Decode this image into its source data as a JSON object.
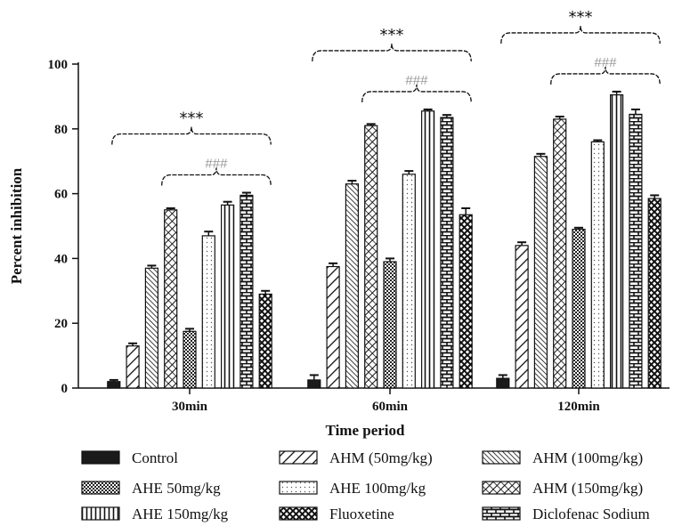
{
  "chart_data": {
    "type": "bar",
    "xlabel": "Time period",
    "ylabel": "Percent inhibition",
    "ylim": [
      0,
      100
    ],
    "yticks": [
      0,
      20,
      40,
      60,
      80,
      100
    ],
    "categories": [
      "30min",
      "60min",
      "120min"
    ],
    "series": [
      {
        "name": "Control",
        "pattern": "solid",
        "values": [
          2,
          2.5,
          3
        ],
        "errors": [
          0.5,
          1.5,
          1
        ]
      },
      {
        "name": "AHM (50mg/kg)",
        "pattern": "diag-wide",
        "values": [
          13,
          37.5,
          44
        ],
        "errors": [
          0.8,
          1,
          1
        ]
      },
      {
        "name": "AHM (100mg/kg)",
        "pattern": "diag-dense",
        "values": [
          37,
          63,
          71.5
        ],
        "errors": [
          0.8,
          1,
          0.8
        ]
      },
      {
        "name": "AHM (150mg/kg)",
        "pattern": "diag-cross",
        "values": [
          55,
          81,
          83
        ],
        "errors": [
          0.5,
          0.5,
          0.8
        ]
      },
      {
        "name": "AHE 50mg/kg",
        "pattern": "checker",
        "values": [
          17.5,
          39,
          49
        ],
        "errors": [
          0.8,
          1,
          0.5
        ]
      },
      {
        "name": "AHE 100mg/kg",
        "pattern": "dots",
        "values": [
          47,
          66,
          76
        ],
        "errors": [
          1.3,
          1,
          0.5
        ]
      },
      {
        "name": "AHE 150mg/kg",
        "pattern": "vlines",
        "values": [
          56.5,
          85.5,
          90.5
        ],
        "errors": [
          1,
          0.5,
          1
        ]
      },
      {
        "name": "Diclofenac Sodium",
        "pattern": "brick",
        "values": [
          59.5,
          83.5,
          84.5
        ],
        "errors": [
          0.8,
          0.8,
          1.5
        ]
      },
      {
        "name": "Fluoxetine",
        "pattern": "xhatch",
        "values": [
          29,
          53.5,
          58.5
        ],
        "errors": [
          1,
          2,
          1
        ]
      }
    ],
    "annotations": [
      {
        "category": "30min",
        "marks": [
          "***",
          "###"
        ]
      },
      {
        "category": "60min",
        "marks": [
          "***",
          "###"
        ]
      },
      {
        "category": "120min",
        "marks": [
          "***",
          "###"
        ]
      }
    ],
    "legend_position": "bottom",
    "legend_order": [
      0,
      1,
      2,
      4,
      5,
      3,
      6,
      8,
      7
    ],
    "grid": false
  }
}
